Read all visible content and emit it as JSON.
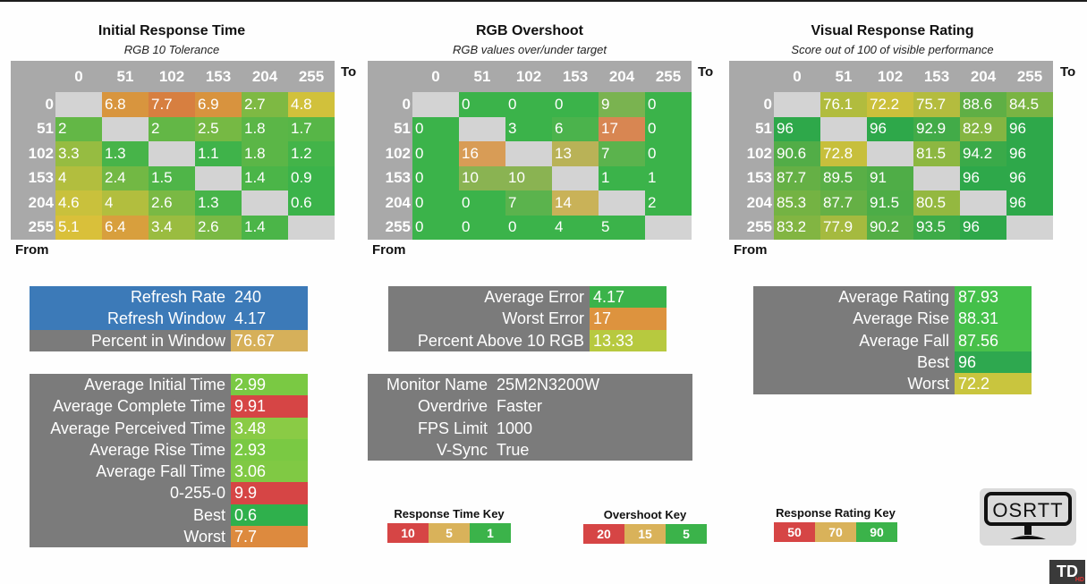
{
  "colors": {
    "grid_bg": "#a9a9a9",
    "empty": "#d3d3d3",
    "stats_bg": "#7b7b7b",
    "blue": "#3c7ab8",
    "red": "#d64545",
    "amber": "#d9b25a",
    "green": "#3bb34a"
  },
  "charts": {
    "response": {
      "title": "Initial Response Time",
      "subtitle": "RGB 10 Tolerance",
      "to_label": "To",
      "from_label": "From"
    },
    "overshoot": {
      "title": "RGB Overshoot",
      "subtitle": "RGB values over/under target",
      "to_label": "To",
      "from_label": "From"
    },
    "rating": {
      "title": "Visual Response Rating",
      "subtitle": "Score out of 100 of visible performance",
      "to_label": "To",
      "from_label": "From"
    }
  },
  "chart_data": [
    {
      "type": "heatmap",
      "title": "Initial Response Time",
      "subtitle": "RGB 10 Tolerance",
      "xlabel": "To",
      "ylabel": "From",
      "x": [
        "0",
        "51",
        "102",
        "153",
        "204",
        "255"
      ],
      "y": [
        "0",
        "51",
        "102",
        "153",
        "204",
        "255"
      ],
      "values": [
        [
          null,
          6.8,
          7.7,
          6.9,
          2.7,
          4.8
        ],
        [
          2,
          null,
          2,
          2.5,
          1.8,
          1.7
        ],
        [
          3.3,
          1.3,
          null,
          1.1,
          1.8,
          1.2
        ],
        [
          4,
          2.4,
          1.5,
          null,
          1.4,
          0.9
        ],
        [
          4.6,
          4,
          2.6,
          1.3,
          null,
          0.6
        ],
        [
          5.1,
          6.4,
          3.4,
          2.6,
          1.4,
          null
        ]
      ],
      "color_scale": {
        "low_good": true,
        "stops": [
          [
            1,
            "#3bb34a"
          ],
          [
            5,
            "#d9c23a"
          ],
          [
            10,
            "#d64545"
          ]
        ]
      }
    },
    {
      "type": "heatmap",
      "title": "RGB Overshoot",
      "subtitle": "RGB values over/under target",
      "xlabel": "To",
      "ylabel": "From",
      "x": [
        "0",
        "51",
        "102",
        "153",
        "204",
        "255"
      ],
      "y": [
        "0",
        "51",
        "102",
        "153",
        "204",
        "255"
      ],
      "values": [
        [
          null,
          0,
          0,
          0,
          9,
          0
        ],
        [
          0,
          null,
          3,
          6,
          17,
          0
        ],
        [
          0,
          16,
          null,
          13,
          7,
          0
        ],
        [
          0,
          10,
          10,
          null,
          1,
          1
        ],
        [
          0,
          0,
          7,
          14,
          null,
          2
        ],
        [
          0,
          0,
          0,
          4,
          5,
          null
        ]
      ],
      "color_scale": {
        "low_good": true,
        "stops": [
          [
            5,
            "#3bb34a"
          ],
          [
            15,
            "#d9b25a"
          ],
          [
            20,
            "#d64545"
          ]
        ]
      }
    },
    {
      "type": "heatmap",
      "title": "Visual Response Rating",
      "subtitle": "Score out of 100 of visible performance",
      "xlabel": "To",
      "ylabel": "From",
      "x": [
        "0",
        "51",
        "102",
        "153",
        "204",
        "255"
      ],
      "y": [
        "0",
        "51",
        "102",
        "153",
        "204",
        "255"
      ],
      "values": [
        [
          null,
          76.1,
          72.2,
          75.7,
          88.6,
          84.5
        ],
        [
          96,
          null,
          96,
          92.9,
          82.9,
          96
        ],
        [
          90.6,
          72.8,
          null,
          81.5,
          94.2,
          96
        ],
        [
          87.7,
          89.5,
          91,
          null,
          96,
          96
        ],
        [
          85.3,
          87.7,
          91.5,
          80.5,
          null,
          96
        ],
        [
          83.2,
          77.9,
          90.2,
          93.5,
          96,
          null
        ]
      ],
      "color_scale": {
        "low_good": false,
        "stops": [
          [
            50,
            "#d64545"
          ],
          [
            70,
            "#d9c23a"
          ],
          [
            96,
            "#2ea84a"
          ]
        ]
      }
    }
  ],
  "refresh": [
    {
      "label": "Refresh Rate",
      "value": "240",
      "bg": "#3c7ab8",
      "vbg": "#3c7ab8"
    },
    {
      "label": "Refresh Window",
      "value": "4.17",
      "bg": "#3c7ab8",
      "vbg": "#3c7ab8"
    },
    {
      "label": "Percent in Window",
      "value": "76.67",
      "bg": "#7b7b7b",
      "vbg": "#d6b05a"
    }
  ],
  "response_stats": [
    {
      "label": "Average Initial Time",
      "value": "2.99",
      "vbg": "#7ac943"
    },
    {
      "label": "Average Complete Time",
      "value": "9.91",
      "vbg": "#d64545"
    },
    {
      "label": "Average Perceived Time",
      "value": "3.48",
      "vbg": "#8acb45"
    },
    {
      "label": "Average Rise Time",
      "value": "2.93",
      "vbg": "#7ac943"
    },
    {
      "label": "Average Fall Time",
      "value": "3.06",
      "vbg": "#80c944"
    },
    {
      "label": "0-255-0",
      "value": "9.9",
      "vbg": "#d64545"
    },
    {
      "label": "Best",
      "value": "0.6",
      "vbg": "#2fb04c"
    },
    {
      "label": "Worst",
      "value": "7.7",
      "vbg": "#dd8a3e"
    }
  ],
  "overshoot_stats": [
    {
      "label": "Average Error",
      "value": "4.17",
      "vbg": "#3bb34a"
    },
    {
      "label": "Worst Error",
      "value": "17",
      "vbg": "#dd933e"
    },
    {
      "label": "Percent Above 10 RGB",
      "value": "13.33",
      "vbg": "#b7c93f"
    }
  ],
  "monitor_info": [
    {
      "label": "Monitor Name",
      "value": "25M2N3200W"
    },
    {
      "label": "Overdrive",
      "value": "Faster"
    },
    {
      "label": "FPS Limit",
      "value": "1000"
    },
    {
      "label": "V-Sync",
      "value": "True"
    }
  ],
  "rating_stats": [
    {
      "label": "Average Rating",
      "value": "87.93",
      "vbg": "#44c04a"
    },
    {
      "label": "Average Rise",
      "value": "88.31",
      "vbg": "#44c04a"
    },
    {
      "label": "Average Fall",
      "value": "87.56",
      "vbg": "#48c04a"
    },
    {
      "label": "Best",
      "value": "96",
      "vbg": "#2ea84f"
    },
    {
      "label": "Worst",
      "value": "72.2",
      "vbg": "#c9c53e"
    }
  ],
  "keys": {
    "response": {
      "title": "Response Time Key",
      "cells": [
        {
          "v": "10",
          "c": "#d64545"
        },
        {
          "v": "5",
          "c": "#d9b25a"
        },
        {
          "v": "1",
          "c": "#3bb34a"
        }
      ]
    },
    "overshoot": {
      "title": "Overshoot Key",
      "cells": [
        {
          "v": "20",
          "c": "#d64545"
        },
        {
          "v": "15",
          "c": "#d9b25a"
        },
        {
          "v": "5",
          "c": "#3bb34a"
        }
      ]
    },
    "rating": {
      "title": "Response Rating Key",
      "cells": [
        {
          "v": "50",
          "c": "#d64545"
        },
        {
          "v": "70",
          "c": "#d9b25a"
        },
        {
          "v": "90",
          "c": "#3bb34a"
        }
      ]
    }
  },
  "logos": {
    "osrtt": "OSRTT",
    "td": "TD",
    "td_sub": "HD"
  }
}
